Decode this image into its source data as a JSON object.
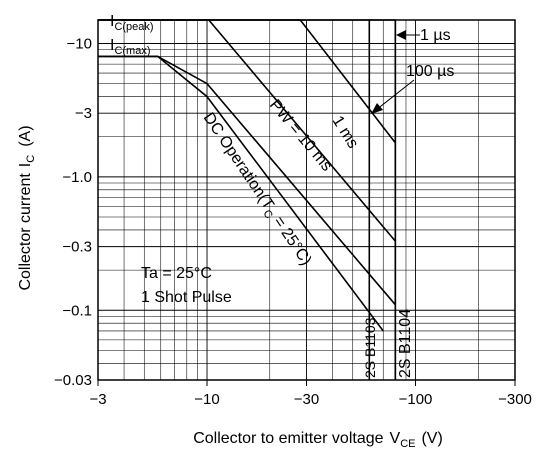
{
  "chart_data": {
    "type": "line",
    "scale": "log-log",
    "grid": true,
    "xlabel": "Collector to emitter voltage",
    "xlabel_symbol": "V",
    "xlabel_sub": "CE",
    "xlabel_unit": "(V)",
    "ylabel": "Collector current",
    "ylabel_symbol": "I",
    "ylabel_sub": "C",
    "ylabel_unit": "(A)",
    "xlim": [
      -3,
      -300
    ],
    "ylim": [
      -0.03,
      -15
    ],
    "x_ticks": [
      -3,
      -10,
      -30,
      -100,
      -300
    ],
    "x_tick_labels": [
      "−3",
      "−10",
      "−30",
      "−100",
      "−300"
    ],
    "y_ticks": [
      -10,
      -3,
      -1.0,
      -0.3,
      -0.1,
      -0.03
    ],
    "y_tick_labels": [
      "−10",
      "−3",
      "−1.0",
      "−0.3",
      "−0.1",
      "−0.03"
    ],
    "series": [
      {
        "name": "1 µs",
        "points": [
          [
            -3,
            -15
          ],
          [
            -80,
            -15
          ],
          [
            -80,
            -0.03
          ]
        ]
      },
      {
        "name": "100 µs",
        "points": [
          [
            -3,
            -15
          ],
          [
            -28,
            -15
          ],
          [
            -80,
            -1.8
          ]
        ]
      },
      {
        "name": "1 ms",
        "points": [
          [
            -3,
            -15
          ],
          [
            -10.2,
            -15
          ],
          [
            -80,
            -0.33
          ]
        ]
      },
      {
        "name": "PW = 10 ms",
        "points": [
          [
            -3,
            -8
          ],
          [
            -5.8,
            -8
          ],
          [
            -10,
            -5
          ],
          [
            -80,
            -0.11
          ]
        ]
      },
      {
        "name": "DC Operation(T",
        "name_sub": "C",
        "name_suffix": " = 25°C)",
        "points": [
          [
            -3,
            -8
          ],
          [
            -5.8,
            -8
          ],
          [
            -10,
            -4
          ],
          [
            -70,
            -0.07
          ]
        ]
      },
      {
        "name": "2S B1103",
        "points": [
          [
            -60,
            -15
          ],
          [
            -60,
            -0.03
          ]
        ]
      },
      {
        "name": "2S B1104",
        "points": [
          [
            -80,
            -15
          ],
          [
            -80,
            -0.03
          ]
        ]
      }
    ],
    "limits": [
      {
        "label": "I",
        "label_sub": "C(peak)",
        "value": -15
      },
      {
        "label": "I",
        "label_sub": "C(max)",
        "value": -8
      }
    ],
    "annotations": [
      "Ta = 25°C",
      "1 Shot Pulse"
    ]
  }
}
